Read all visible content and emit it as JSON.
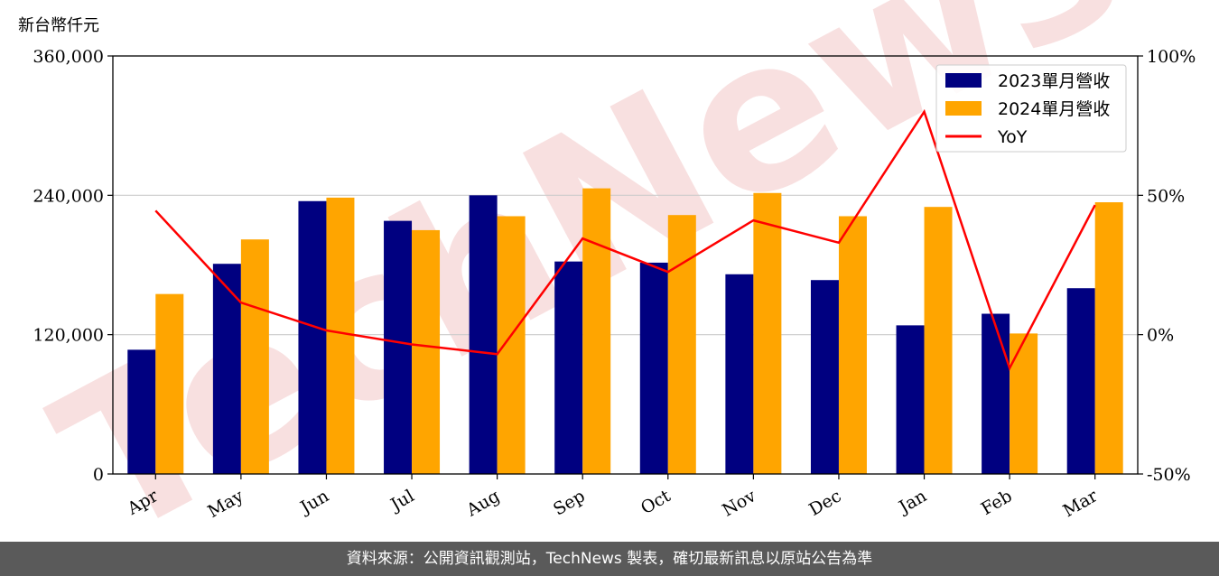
{
  "unit_label": "新台幣仟元",
  "footer_text": "資料來源：公開資訊觀測站，TechNews 製表，確切最新訊息以原站公告為準",
  "watermark_text": "TechNews",
  "colors": {
    "series_2023": "#000080",
    "series_2024": "#FFA500",
    "yoy": "#FF0000",
    "grid": "#cccccc",
    "watermark": "#f3c6c6"
  },
  "chart_data": {
    "type": "bar",
    "categories": [
      "Apr",
      "May",
      "Jun",
      "Jul",
      "Aug",
      "Sep",
      "Oct",
      "Nov",
      "Dec",
      "Jan",
      "Feb",
      "Mar"
    ],
    "series": [
      {
        "name": "2023單月營收",
        "values": [
          107000,
          181000,
          235000,
          218000,
          240000,
          183000,
          182000,
          172000,
          167000,
          128000,
          138000,
          160000
        ]
      },
      {
        "name": "2024單月營收",
        "values": [
          155000,
          202000,
          238000,
          210000,
          222000,
          246000,
          223000,
          242000,
          222000,
          230000,
          121000,
          234000
        ]
      }
    ],
    "line_series": {
      "name": "YoY",
      "axis": "right",
      "values": [
        44.5,
        11.5,
        1.5,
        -3.5,
        -7.0,
        34.5,
        22.5,
        41.0,
        33.0,
        80.0,
        -12.0,
        46.5
      ]
    },
    "left_axis": {
      "ylim": [
        0,
        360000
      ],
      "ticks": [
        "0",
        "120,000",
        "240,000",
        "360,000"
      ],
      "tick_values": [
        0,
        120000,
        240000,
        360000
      ]
    },
    "right_axis": {
      "ylim": [
        -50,
        100
      ],
      "ticks": [
        "-50%",
        "0%",
        "50%",
        "100%"
      ],
      "tick_values": [
        -50,
        0,
        50,
        100
      ]
    },
    "grid": "horizontal",
    "legend_position": "top-right"
  }
}
